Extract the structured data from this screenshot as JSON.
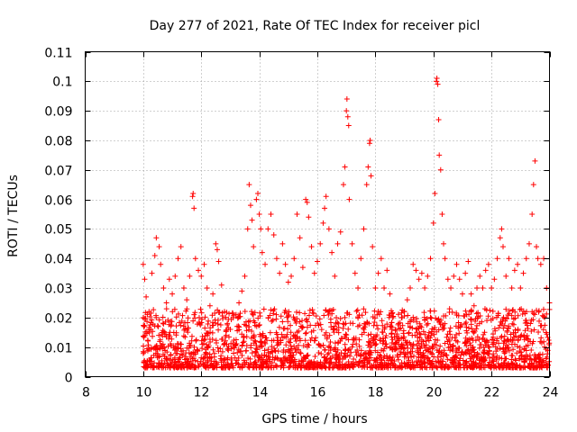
{
  "chart_data": {
    "type": "scatter",
    "title": "Day 277 of 2021, Rate Of TEC Index for receiver picl",
    "xlabel": "GPS time / hours",
    "ylabel": "ROTI / TECUs",
    "xlim": [
      8,
      24
    ],
    "ylim": [
      0,
      0.11
    ],
    "x_ticks": [
      8,
      10,
      12,
      14,
      16,
      18,
      20,
      22,
      24
    ],
    "x_tick_labels": [
      "8",
      "10",
      "12",
      "14",
      "16",
      "18",
      "20",
      "22",
      "24"
    ],
    "y_ticks": [
      0,
      0.01,
      0.02,
      0.03,
      0.04,
      0.05,
      0.06,
      0.07,
      0.08,
      0.09,
      0.1,
      0.11
    ],
    "y_tick_labels": [
      "0",
      "0.01",
      "0.02",
      "0.03",
      "0.04",
      "0.05",
      "0.06",
      "0.07",
      "0.08",
      "0.09",
      "0.1",
      "0.11"
    ],
    "grid": true,
    "marker": "+",
    "color": "#ff0000",
    "series": [
      {
        "name": "ROTI",
        "points": [
          [
            10.0,
            0.038
          ],
          [
            10.05,
            0.033
          ],
          [
            10.1,
            0.027
          ],
          [
            10.2,
            0.022
          ],
          [
            10.3,
            0.035
          ],
          [
            10.4,
            0.041
          ],
          [
            10.45,
            0.047
          ],
          [
            10.55,
            0.044
          ],
          [
            10.6,
            0.038
          ],
          [
            10.7,
            0.03
          ],
          [
            10.8,
            0.025
          ],
          [
            10.9,
            0.033
          ],
          [
            11.0,
            0.028
          ],
          [
            11.1,
            0.034
          ],
          [
            11.2,
            0.04
          ],
          [
            11.3,
            0.044
          ],
          [
            11.4,
            0.03
          ],
          [
            11.5,
            0.026
          ],
          [
            11.6,
            0.034
          ],
          [
            11.7,
            0.061
          ],
          [
            11.72,
            0.062
          ],
          [
            11.75,
            0.057
          ],
          [
            11.8,
            0.04
          ],
          [
            11.9,
            0.036
          ],
          [
            12.0,
            0.034
          ],
          [
            12.1,
            0.038
          ],
          [
            12.2,
            0.03
          ],
          [
            12.3,
            0.024
          ],
          [
            12.4,
            0.028
          ],
          [
            12.5,
            0.045
          ],
          [
            12.55,
            0.043
          ],
          [
            12.6,
            0.039
          ],
          [
            12.7,
            0.031
          ],
          [
            12.8,
            0.022
          ],
          [
            12.9,
            0.018
          ],
          [
            13.0,
            0.016
          ],
          [
            13.1,
            0.02
          ],
          [
            13.2,
            0.021
          ],
          [
            13.3,
            0.025
          ],
          [
            13.4,
            0.029
          ],
          [
            13.5,
            0.034
          ],
          [
            13.6,
            0.05
          ],
          [
            13.65,
            0.065
          ],
          [
            13.7,
            0.058
          ],
          [
            13.75,
            0.053
          ],
          [
            13.8,
            0.044
          ],
          [
            13.9,
            0.06
          ],
          [
            13.95,
            0.062
          ],
          [
            14.0,
            0.055
          ],
          [
            14.05,
            0.05
          ],
          [
            14.1,
            0.042
          ],
          [
            14.2,
            0.038
          ],
          [
            14.3,
            0.05
          ],
          [
            14.4,
            0.055
          ],
          [
            14.5,
            0.048
          ],
          [
            14.6,
            0.04
          ],
          [
            14.7,
            0.035
          ],
          [
            14.8,
            0.045
          ],
          [
            14.9,
            0.038
          ],
          [
            15.0,
            0.032
          ],
          [
            15.1,
            0.034
          ],
          [
            15.2,
            0.04
          ],
          [
            15.3,
            0.055
          ],
          [
            15.4,
            0.047
          ],
          [
            15.5,
            0.037
          ],
          [
            15.6,
            0.06
          ],
          [
            15.65,
            0.059
          ],
          [
            15.7,
            0.054
          ],
          [
            15.8,
            0.044
          ],
          [
            15.9,
            0.035
          ],
          [
            16.0,
            0.039
          ],
          [
            16.1,
            0.045
          ],
          [
            16.2,
            0.052
          ],
          [
            16.25,
            0.057
          ],
          [
            16.3,
            0.061
          ],
          [
            16.4,
            0.05
          ],
          [
            16.5,
            0.042
          ],
          [
            16.6,
            0.034
          ],
          [
            16.7,
            0.045
          ],
          [
            16.8,
            0.049
          ],
          [
            16.9,
            0.065
          ],
          [
            16.95,
            0.071
          ],
          [
            17.0,
            0.09
          ],
          [
            17.02,
            0.094
          ],
          [
            17.05,
            0.088
          ],
          [
            17.08,
            0.085
          ],
          [
            17.1,
            0.06
          ],
          [
            17.2,
            0.045
          ],
          [
            17.3,
            0.035
          ],
          [
            17.4,
            0.03
          ],
          [
            17.5,
            0.04
          ],
          [
            17.6,
            0.05
          ],
          [
            17.7,
            0.065
          ],
          [
            17.75,
            0.071
          ],
          [
            17.8,
            0.079
          ],
          [
            17.82,
            0.08
          ],
          [
            17.85,
            0.068
          ],
          [
            17.9,
            0.044
          ],
          [
            18.0,
            0.03
          ],
          [
            18.1,
            0.035
          ],
          [
            18.2,
            0.04
          ],
          [
            18.3,
            0.03
          ],
          [
            18.4,
            0.036
          ],
          [
            18.5,
            0.028
          ],
          [
            18.6,
            0.02
          ],
          [
            18.7,
            0.016
          ],
          [
            18.8,
            0.018
          ],
          [
            18.9,
            0.02
          ],
          [
            19.0,
            0.022
          ],
          [
            19.1,
            0.026
          ],
          [
            19.2,
            0.03
          ],
          [
            19.3,
            0.038
          ],
          [
            19.4,
            0.036
          ],
          [
            19.5,
            0.033
          ],
          [
            19.6,
            0.035
          ],
          [
            19.7,
            0.03
          ],
          [
            19.8,
            0.034
          ],
          [
            19.9,
            0.04
          ],
          [
            20.0,
            0.052
          ],
          [
            20.05,
            0.062
          ],
          [
            20.1,
            0.1
          ],
          [
            20.12,
            0.101
          ],
          [
            20.15,
            0.099
          ],
          [
            20.18,
            0.087
          ],
          [
            20.2,
            0.075
          ],
          [
            20.25,
            0.07
          ],
          [
            20.3,
            0.055
          ],
          [
            20.35,
            0.045
          ],
          [
            20.4,
            0.04
          ],
          [
            20.5,
            0.033
          ],
          [
            20.6,
            0.03
          ],
          [
            20.7,
            0.034
          ],
          [
            20.8,
            0.038
          ],
          [
            20.9,
            0.033
          ],
          [
            21.0,
            0.028
          ],
          [
            21.1,
            0.035
          ],
          [
            21.2,
            0.039
          ],
          [
            21.3,
            0.028
          ],
          [
            21.4,
            0.024
          ],
          [
            21.5,
            0.03
          ],
          [
            21.6,
            0.034
          ],
          [
            21.7,
            0.03
          ],
          [
            21.8,
            0.036
          ],
          [
            21.9,
            0.038
          ],
          [
            22.0,
            0.03
          ],
          [
            22.1,
            0.033
          ],
          [
            22.2,
            0.04
          ],
          [
            22.3,
            0.047
          ],
          [
            22.35,
            0.05
          ],
          [
            22.4,
            0.044
          ],
          [
            22.5,
            0.034
          ],
          [
            22.6,
            0.04
          ],
          [
            22.7,
            0.03
          ],
          [
            22.8,
            0.036
          ],
          [
            22.9,
            0.038
          ],
          [
            23.0,
            0.03
          ],
          [
            23.1,
            0.035
          ],
          [
            23.2,
            0.04
          ],
          [
            23.3,
            0.045
          ],
          [
            23.4,
            0.055
          ],
          [
            23.45,
            0.065
          ],
          [
            23.5,
            0.073
          ],
          [
            23.55,
            0.044
          ],
          [
            23.6,
            0.04
          ],
          [
            23.7,
            0.038
          ],
          [
            23.8,
            0.04
          ],
          [
            23.9,
            0.03
          ],
          [
            24.0,
            0.025
          ]
        ]
      }
    ]
  }
}
